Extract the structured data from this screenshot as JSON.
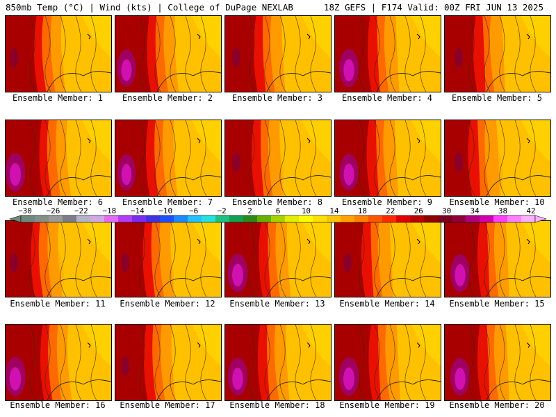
{
  "header": {
    "left": "850mb Temp (°C) | Wind (kts) | College of DuPage NEXLAB",
    "right": "18Z GEFS | F174 Valid: 00Z FRI JUN 13 2025"
  },
  "panels": [
    {
      "label": "Ensemble Member: 1",
      "heat": 0.55
    },
    {
      "label": "Ensemble Member: 2",
      "heat": 0.7
    },
    {
      "label": "Ensemble Member: 3",
      "heat": 0.55
    },
    {
      "label": "Ensemble Member: 4",
      "heat": 0.75
    },
    {
      "label": "Ensemble Member: 5",
      "heat": 0.55
    },
    {
      "label": "Ensemble Member: 6",
      "heat": 0.8
    },
    {
      "label": "Ensemble Member: 7",
      "heat": 0.65
    },
    {
      "label": "Ensemble Member: 8",
      "heat": 0.45
    },
    {
      "label": "Ensemble Member: 9",
      "heat": 0.7
    },
    {
      "label": "Ensemble Member: 10",
      "heat": 0.3
    },
    {
      "label": "Ensemble Member: 11",
      "heat": 0.4
    },
    {
      "label": "Ensemble Member: 12",
      "heat": 0.5
    },
    {
      "label": "Ensemble Member: 13",
      "heat": 0.8
    },
    {
      "label": "Ensemble Member: 14",
      "heat": 0.45
    },
    {
      "label": "Ensemble Member: 15",
      "heat": 0.75
    },
    {
      "label": "Ensemble Member: 16",
      "heat": 0.85
    },
    {
      "label": "Ensemble Member: 17",
      "heat": 0.55
    },
    {
      "label": "Ensemble Member: 18",
      "heat": 0.75
    },
    {
      "label": "Ensemble Member: 19",
      "heat": 0.8
    },
    {
      "label": "Ensemble Member: 20",
      "heat": 0.75
    }
  ],
  "colorbar": {
    "ticks": [
      "−30",
      "−26",
      "−22",
      "−18",
      "−14",
      "−10",
      "−6",
      "−2",
      "2",
      "6",
      "10",
      "14",
      "18",
      "22",
      "26",
      "30",
      "34",
      "38",
      "42"
    ],
    "colors": [
      "#6f8a7c",
      "#838f88",
      "#9a9a9a",
      "#7b7b8b",
      "#b3b3c9",
      "#cfa9e6",
      "#e16cf2",
      "#b33df5",
      "#7b2cf0",
      "#3e35e0",
      "#1f4fff",
      "#1e88ff",
      "#24c0ff",
      "#25e0e0",
      "#20c080",
      "#15a050",
      "#2c8a1a",
      "#66b100",
      "#a6d400",
      "#e0f000",
      "#ffff00",
      "#ffe000",
      "#ffc400",
      "#ffa200",
      "#ff7f00",
      "#ff5500",
      "#ff2a00",
      "#e00000",
      "#b80000",
      "#900000",
      "#7a0020",
      "#90003a",
      "#b00080",
      "#d000b0",
      "#ff40ff",
      "#ff80ff",
      "#ffb0ff"
    ]
  }
}
